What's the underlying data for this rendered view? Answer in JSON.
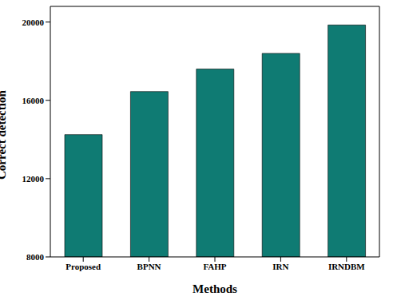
{
  "chart_data": {
    "type": "bar",
    "x_label": "Methods",
    "y_label": "Correct detection",
    "categories": [
      "Proposed",
      "BPNN",
      "FAHP",
      "IRN",
      "IRNDBM"
    ],
    "values": [
      14250,
      16450,
      17600,
      18400,
      19850
    ],
    "color": "#0f7b73",
    "ylim": [
      8000,
      20800
    ],
    "yticks": [
      8000,
      12000,
      16000,
      20000
    ],
    "grid": false
  }
}
